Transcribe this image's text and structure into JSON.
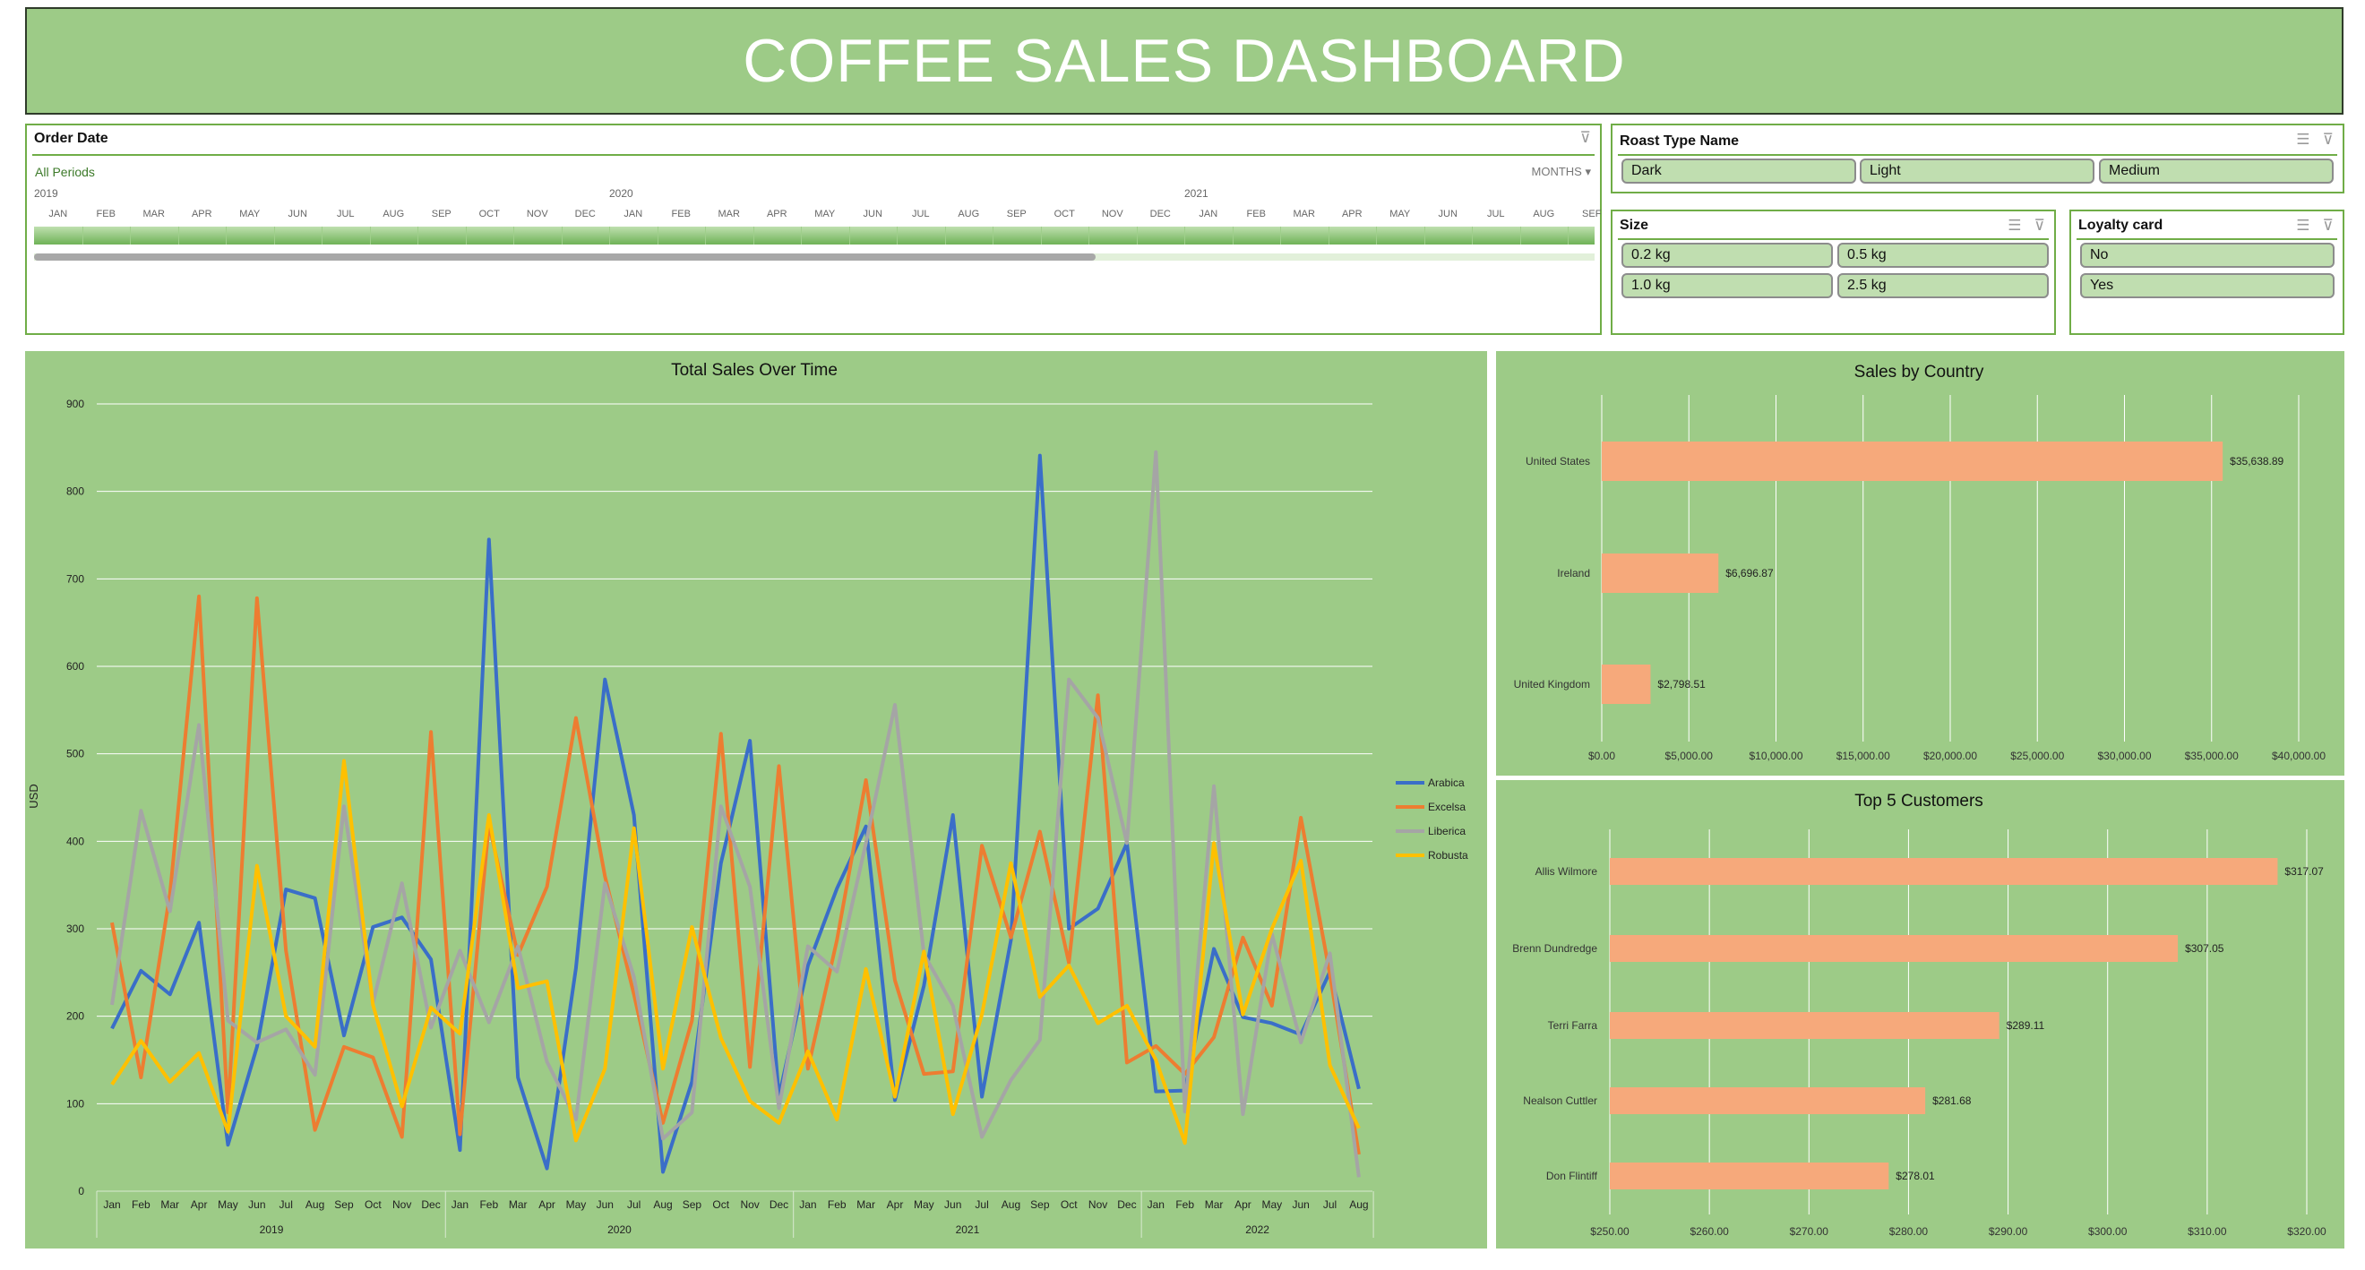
{
  "header": {
    "title": "COFFEE SALES DASHBOARD"
  },
  "colors": {
    "panel": "#9dcb87",
    "bar": "#f6a97b",
    "slicer_border": "#70ad47",
    "button": "#c0deb0"
  },
  "order_date": {
    "title": "Order Date",
    "period_label": "All Periods",
    "level": "MONTHS",
    "clear_icon": "clear-filter-icon",
    "years": [
      {
        "label": "2019",
        "offset": 0
      },
      {
        "label": "2020",
        "offset": 12
      },
      {
        "label": "2021",
        "offset": 24
      }
    ],
    "months": [
      "JAN",
      "FEB",
      "MAR",
      "APR",
      "MAY",
      "JUN",
      "JUL",
      "AUG",
      "SEP",
      "OCT",
      "NOV",
      "DEC",
      "JAN",
      "FEB",
      "MAR",
      "APR",
      "MAY",
      "JUN",
      "JUL",
      "AUG",
      "SEP",
      "OCT",
      "NOV",
      "DEC",
      "JAN",
      "FEB",
      "MAR",
      "APR",
      "MAY",
      "JUN",
      "JUL",
      "AUG",
      "SEF"
    ],
    "scroll_fraction": 0.68
  },
  "roast": {
    "title": "Roast Type Name",
    "items": [
      "Dark",
      "Light",
      "Medium"
    ]
  },
  "size": {
    "title": "Size",
    "items": [
      "0.2 kg",
      "0.5 kg",
      "1.0 kg",
      "2.5 kg"
    ]
  },
  "loyalty": {
    "title": "Loyalty card",
    "items": [
      "No",
      "Yes"
    ]
  },
  "chart_data": [
    {
      "type": "line",
      "title": "Total Sales Over Time",
      "ylabel": "USD",
      "xlabel": "",
      "ylim": [
        0,
        900
      ],
      "yticks": [
        0,
        100,
        200,
        300,
        400,
        500,
        600,
        700,
        800,
        900
      ],
      "grid": true,
      "legend": "right",
      "years": [
        {
          "label": "2019",
          "count": 12
        },
        {
          "label": "2020",
          "count": 12
        },
        {
          "label": "2021",
          "count": 12
        },
        {
          "label": "2022",
          "count": 8
        }
      ],
      "months": [
        "Jan",
        "Feb",
        "Mar",
        "Apr",
        "May",
        "Jun",
        "Jul",
        "Aug",
        "Sep",
        "Oct",
        "Nov",
        "Dec",
        "Jan",
        "Feb",
        "Mar",
        "Apr",
        "May",
        "Jun",
        "Jul",
        "Aug",
        "Sep",
        "Oct",
        "Nov",
        "Dec",
        "Jan",
        "Feb",
        "Mar",
        "Apr",
        "May",
        "Jun",
        "Jul",
        "Aug",
        "Sep",
        "Oct",
        "Nov",
        "Dec",
        "Jan",
        "Feb",
        "Mar",
        "Apr",
        "May",
        "Jun",
        "Jul",
        "Aug"
      ],
      "series": [
        {
          "name": "Arabica",
          "color": "#3a6ec8",
          "values": [
            186,
            252,
            225,
            307,
            53,
            165,
            345,
            335,
            178,
            302,
            313,
            265,
            47,
            745,
            130,
            26,
            255,
            585,
            430,
            22,
            125,
            375,
            515,
            108,
            258,
            346,
            417,
            104,
            235,
            430,
            108,
            287,
            841,
            300,
            323,
            398,
            114,
            115,
            277,
            199,
            192,
            179,
            251,
            117
          ]
        },
        {
          "name": "Excelsa",
          "color": "#ed7d31",
          "values": [
            307,
            130,
            340,
            680,
            90,
            678,
            275,
            70,
            165,
            153,
            62,
            525,
            65,
            420,
            270,
            348,
            541,
            360,
            225,
            78,
            195,
            523,
            142,
            486,
            140,
            287,
            470,
            241,
            134,
            137,
            395,
            290,
            411,
            261,
            567,
            147,
            166,
            134,
            176,
            290,
            212,
            427,
            248,
            42
          ]
        },
        {
          "name": "Liberica",
          "color": "#a5a5a5",
          "values": [
            213,
            435,
            320,
            533,
            195,
            170,
            185,
            133,
            440,
            215,
            352,
            187,
            275,
            193,
            280,
            148,
            82,
            352,
            245,
            60,
            90,
            440,
            348,
            95,
            280,
            251,
            398,
            556,
            271,
            212,
            62,
            127,
            173,
            585,
            541,
            398,
            845,
            91,
            463,
            88,
            294,
            170,
            272,
            16
          ]
        },
        {
          "name": "Robusta",
          "color": "#ffc000",
          "values": [
            122,
            172,
            125,
            158,
            68,
            372,
            200,
            165,
            492,
            213,
            97,
            210,
            180,
            430,
            232,
            240,
            58,
            140,
            415,
            140,
            302,
            175,
            103,
            78,
            160,
            82,
            254,
            108,
            274,
            88,
            202,
            375,
            222,
            258,
            192,
            212,
            150,
            55,
            398,
            202,
            300,
            378,
            144,
            72
          ]
        }
      ]
    },
    {
      "type": "bar",
      "orientation": "horizontal",
      "title": "Sales by Country",
      "xlim": [
        0,
        40000
      ],
      "grid": true,
      "categories": [
        "United States",
        "Ireland",
        "United Kingdom"
      ],
      "values": [
        35638.89,
        6696.87,
        2798.51
      ],
      "labels": [
        "$35,638.89",
        "$6,696.87",
        "$2,798.51"
      ],
      "ticks": [
        0,
        5000,
        10000,
        15000,
        20000,
        25000,
        30000,
        35000,
        40000
      ],
      "tick_labels": [
        "$0.00",
        "$5,000.00",
        "$10,000.00",
        "$15,000.00",
        "$20,000.00",
        "$25,000.00",
        "$30,000.00",
        "$35,000.00",
        "$40,000.00"
      ]
    },
    {
      "type": "bar",
      "orientation": "horizontal",
      "title": "Top 5 Customers",
      "xlim": [
        250,
        320
      ],
      "grid": true,
      "categories": [
        "Allis Wilmore",
        "Brenn Dundredge",
        "Terri Farra",
        "Nealson Cuttler",
        "Don Flintiff"
      ],
      "values": [
        317.07,
        307.05,
        289.11,
        281.68,
        278.01
      ],
      "labels": [
        "$317.07",
        "$307.05",
        "$289.11",
        "$281.68",
        "$278.01"
      ],
      "ticks": [
        250,
        260,
        270,
        280,
        290,
        300,
        310,
        320
      ],
      "tick_labels": [
        "$250.00",
        "$260.00",
        "$270.00",
        "$280.00",
        "$290.00",
        "$300.00",
        "$310.00",
        "$320.00"
      ]
    }
  ]
}
